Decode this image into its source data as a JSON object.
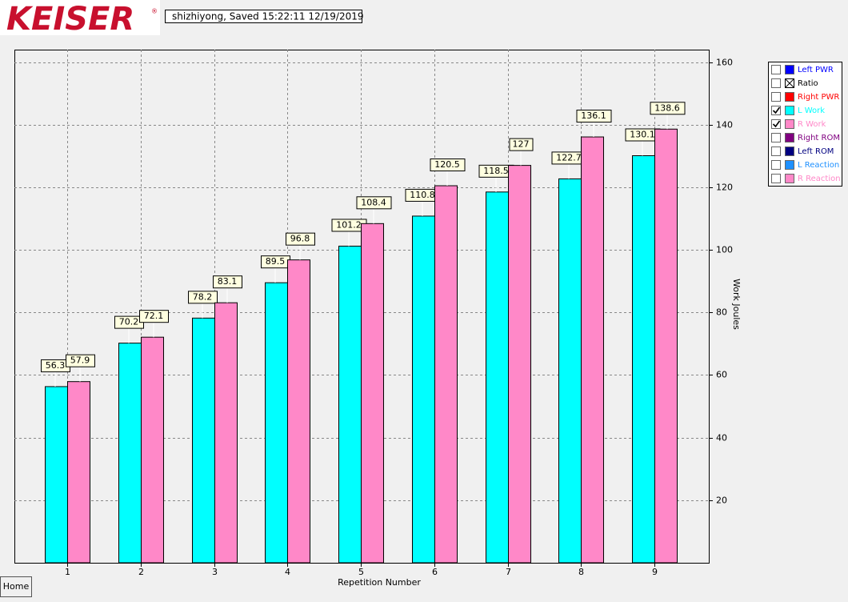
{
  "logo": "KEISER",
  "trademark": "®",
  "status": "shizhiyong, Saved  15:22:11 12/19/2019",
  "home_button": "Home",
  "chart_data": {
    "type": "bar",
    "x_label": "Repetition Number",
    "y_label": "Work Joules",
    "categories": [
      "1",
      "2",
      "3",
      "4",
      "5",
      "6",
      "7",
      "8",
      "9"
    ],
    "series": [
      {
        "color": "#00ffff",
        "values": [
          56.3,
          70.2,
          78.2,
          89.5,
          101.2,
          110.8,
          118.5,
          122.7,
          130.1
        ]
      },
      {
        "color": "#ff88c8",
        "values": [
          57.9,
          72.1,
          83.1,
          96.8,
          108.4,
          120.5,
          127,
          136.1,
          138.6
        ]
      }
    ],
    "ylim": [
      0,
      164
    ],
    "yticks": [
      20,
      40,
      60,
      80,
      100,
      120,
      140,
      160
    ],
    "grid": true,
    "legend": [
      {
        "name": "Left PWR",
        "color": "#0000ff",
        "checked": false
      },
      {
        "name": "Ratio",
        "color": "#000000",
        "checked": false
      },
      {
        "name": "Right PWR",
        "color": "#ff0000",
        "checked": false
      },
      {
        "name": "L Work",
        "color": "#00ffff",
        "checked": true
      },
      {
        "name": "R Work",
        "color": "#ff88c8",
        "checked": true
      },
      {
        "name": "Right ROM",
        "color": "#800080",
        "checked": false
      },
      {
        "name": "Left ROM",
        "color": "#000080",
        "checked": false
      },
      {
        "name": "L Reaction",
        "color": "#1e90ff",
        "checked": false
      },
      {
        "name": "R Reaction",
        "color": "#ff88c8",
        "checked": false
      }
    ]
  }
}
